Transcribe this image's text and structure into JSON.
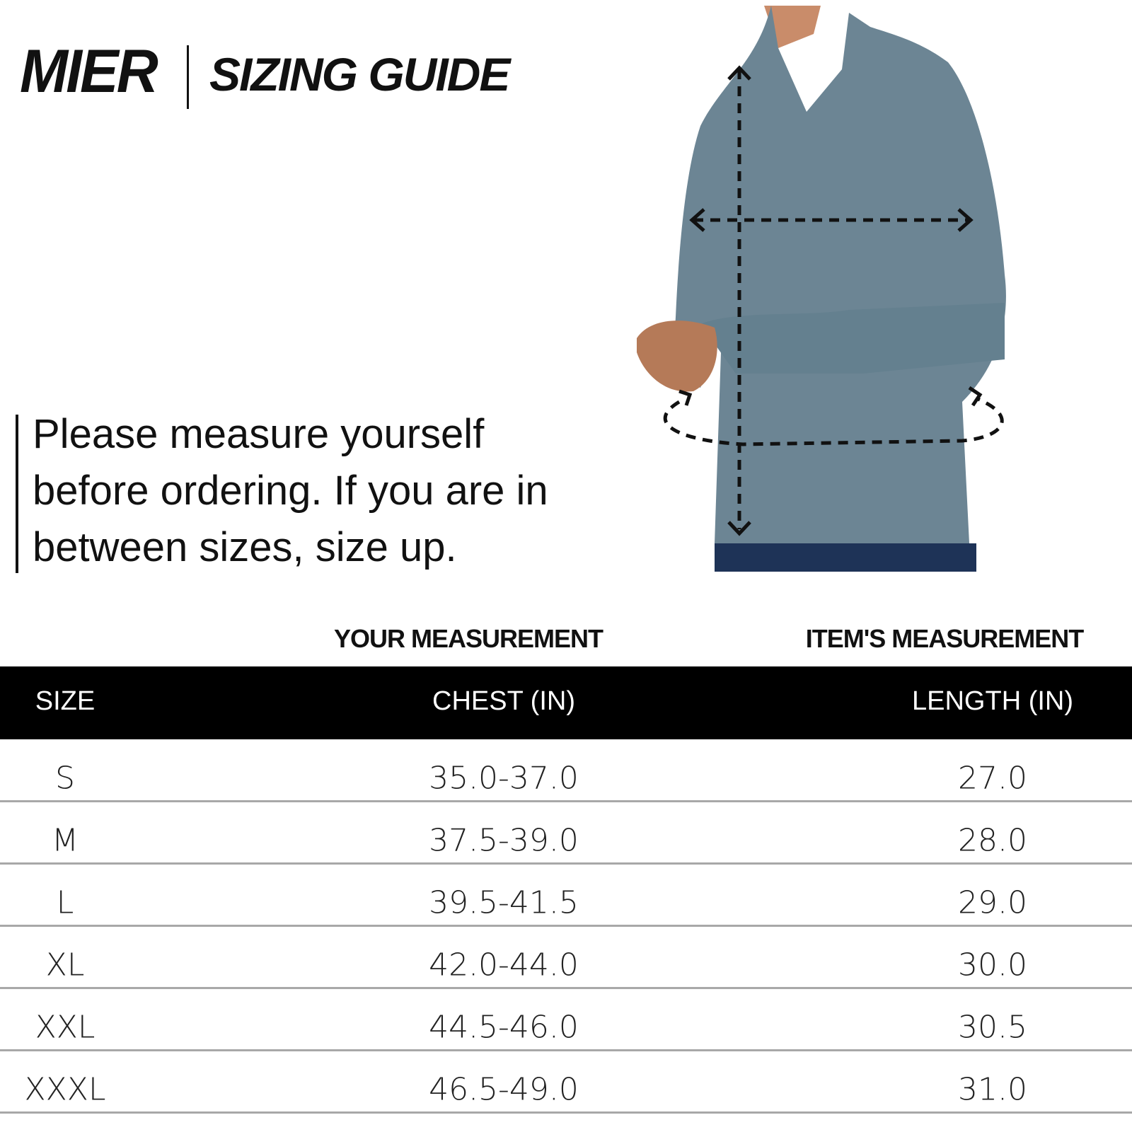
{
  "header": {
    "brand": "MIER",
    "title": "SIZING GUIDE"
  },
  "note": {
    "lines": [
      "Please measure yourself",
      "before ordering. If you are in",
      "between sizes, size up."
    ]
  },
  "table": {
    "groups": [
      "YOUR MEASUREMENT",
      "ITEM'S MEASUREMENT"
    ],
    "columns": [
      "SIZE",
      "CHEST (IN)",
      "LENGTH (IN)"
    ],
    "rows": [
      [
        "S",
        "35.0-37.0",
        "27.0"
      ],
      [
        "M",
        "37.5-39.0",
        "28.0"
      ],
      [
        "L",
        "39.5-41.5",
        "29.0"
      ],
      [
        "XL",
        "42.0-44.0",
        "30.0"
      ],
      [
        "XXL",
        "44.5-46.0",
        "30.5"
      ],
      [
        "XXXL",
        "46.5-49.0",
        "31.0"
      ]
    ]
  }
}
